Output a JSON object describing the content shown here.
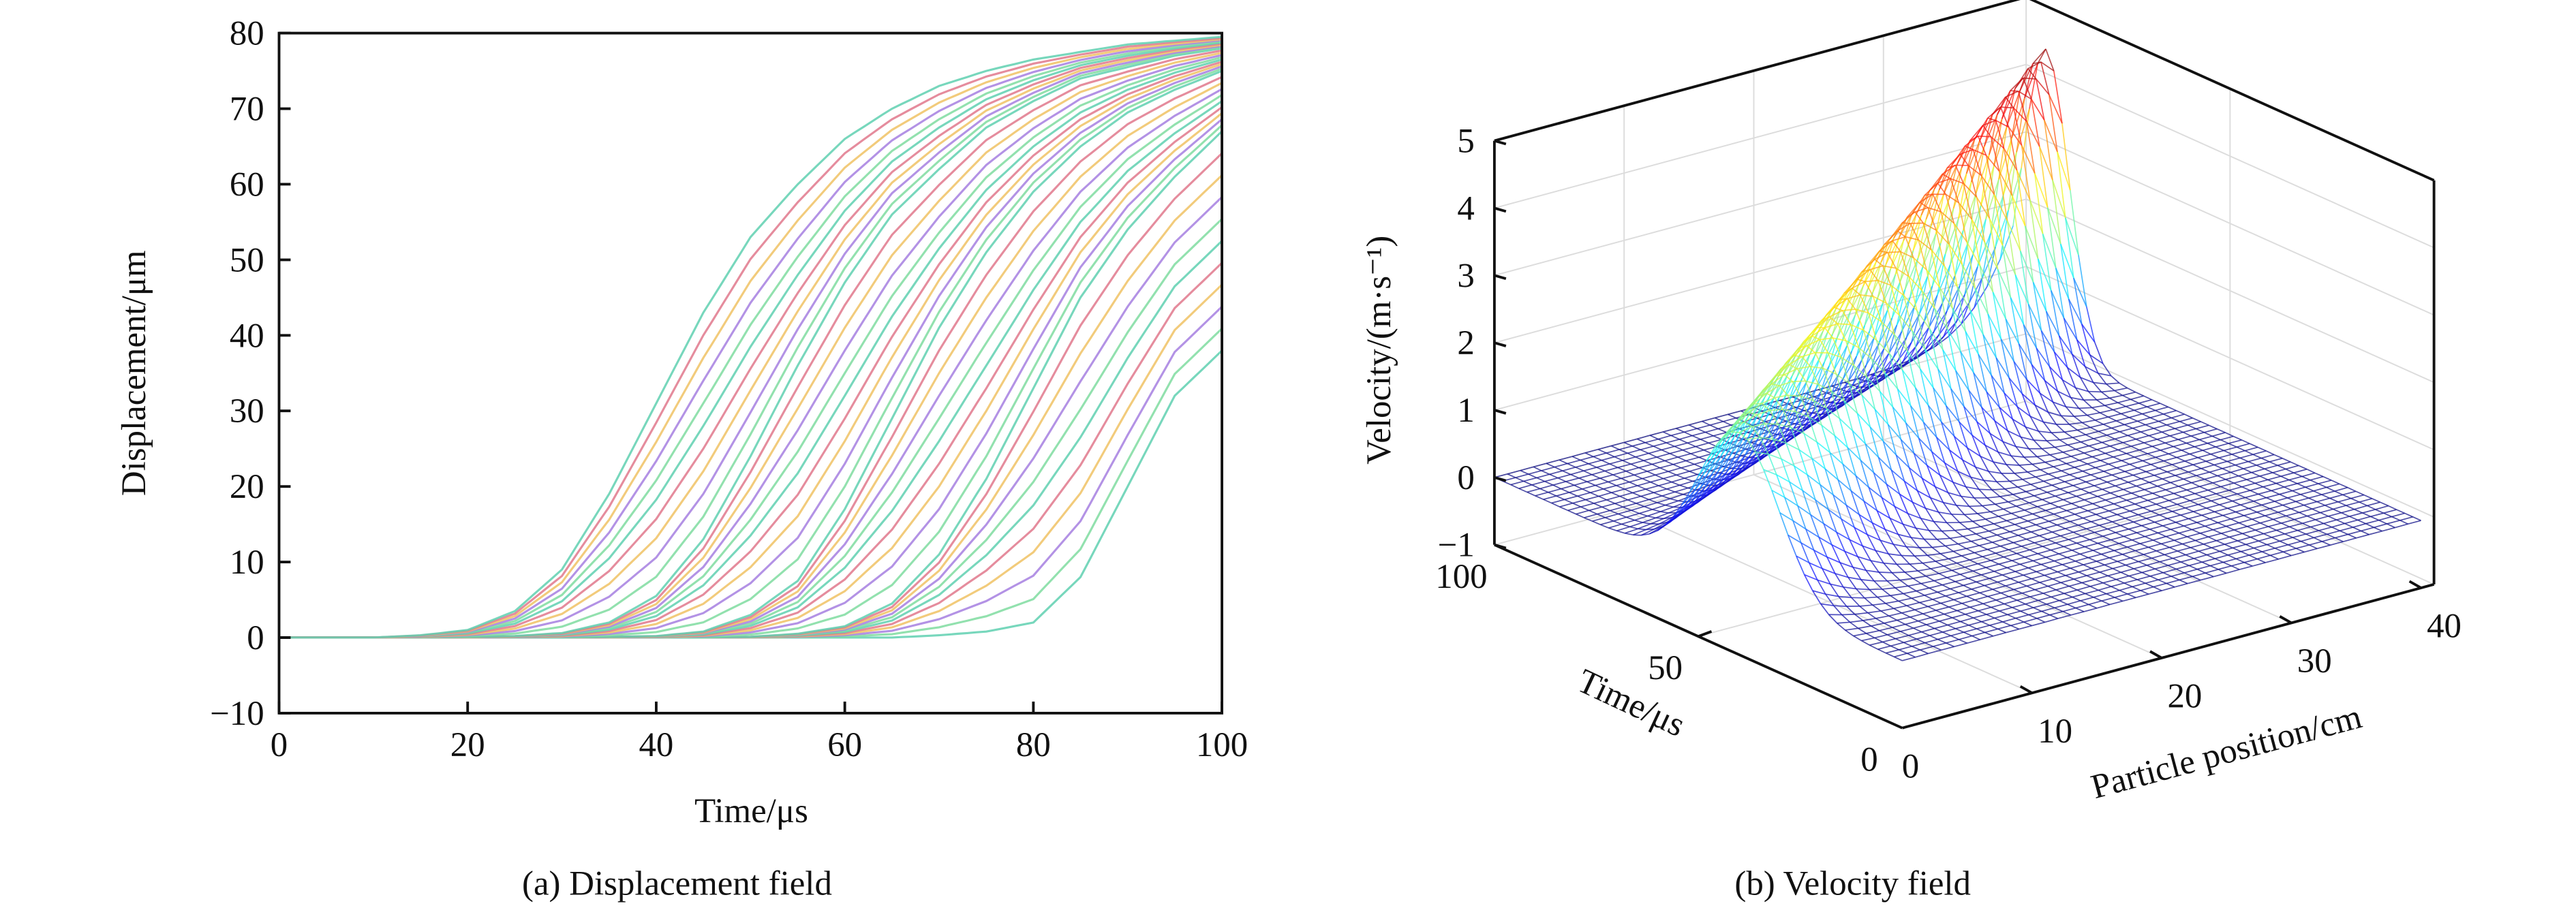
{
  "chart_data": [
    {
      "type": "line",
      "caption": "(a) Displacement field",
      "xlabel": "Time/μs",
      "ylabel": "Displacement/μm",
      "xlim": [
        0,
        100
      ],
      "ylim": [
        -10,
        80
      ],
      "xticks": [
        "0",
        "20",
        "40",
        "60",
        "80",
        "100"
      ],
      "yticks": [
        "−10",
        "0",
        "10",
        "20",
        "30",
        "40",
        "50",
        "60",
        "70",
        "80"
      ],
      "grid": false,
      "legend": "none",
      "curve_count": 41,
      "colors": [
        "#5fd0b0",
        "#e0788c",
        "#f0c264",
        "#a67fe0",
        "#7fdca0"
      ],
      "x": [
        0,
        5,
        10,
        15,
        20,
        25,
        30,
        35,
        40,
        45,
        50,
        55,
        60,
        65,
        70,
        75,
        80,
        85,
        90,
        95,
        100
      ],
      "series": [
        {
          "values": [
            0,
            0,
            0,
            0.3,
            1,
            3.5,
            9,
            19,
            31,
            43,
            53,
            60,
            66,
            70,
            73,
            75,
            76.5,
            77.5,
            78.5,
            79,
            79.5
          ]
        },
        {
          "values": [
            0,
            0,
            0,
            0,
            0.1,
            0.2,
            0.6,
            2,
            5.5,
            13,
            24,
            36,
            47,
            56,
            62,
            67.5,
            71,
            74,
            75.5,
            77,
            78
          ]
        },
        {
          "values": [
            0,
            0,
            0,
            0,
            0,
            0,
            0,
            0.1,
            0.2,
            0.8,
            3,
            7.5,
            17,
            29,
            41,
            51,
            59,
            65,
            69.5,
            72.5,
            75
          ]
        },
        {
          "values": [
            0,
            0,
            0,
            0,
            0,
            0,
            0,
            0,
            0,
            0,
            0.1,
            0.5,
            1.5,
            4.5,
            11,
            21,
            33,
            45,
            54,
            61,
            67
          ]
        },
        {
          "values": [
            0,
            0,
            0,
            0,
            0,
            0,
            0,
            0,
            0,
            0,
            0,
            0,
            0,
            0,
            0.3,
            0.8,
            2,
            8,
            20,
            32,
            38
          ]
        }
      ]
    },
    {
      "type": "surface",
      "caption": "(b) Velocity field",
      "xlabel": "Particle position/cm",
      "ylabel": "Time/μs",
      "zlabel": "Velocity/(m·s⁻¹)",
      "xlim": [
        0,
        41
      ],
      "ylim": [
        0,
        100
      ],
      "zlim": [
        -1,
        5
      ],
      "xticks": [
        "10",
        "20",
        "30",
        "40"
      ],
      "yticks": [
        "0",
        "50",
        "100"
      ],
      "zticks": [
        "−1",
        "0",
        "1",
        "2",
        "3",
        "4",
        "5"
      ],
      "colormap": "jet",
      "ridge": [
        {
          "position_cm": 0,
          "time_us": 40,
          "velocity": 2.3,
          "pulse_width_us": 14
        },
        {
          "position_cm": 40,
          "time_us": 92,
          "velocity": 4.5,
          "pulse_width_us": 8
        }
      ]
    }
  ]
}
